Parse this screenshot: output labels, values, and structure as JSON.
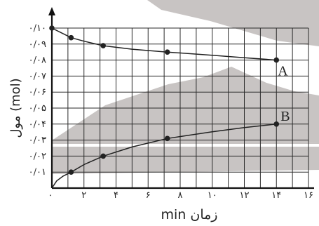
{
  "chart_data": {
    "type": "line",
    "xlabel": "min زمان",
    "ylabel": "مول (mol)",
    "xlim": [
      0,
      16
    ],
    "ylim": [
      0,
      0.1
    ],
    "grid": true,
    "x_ticks": [
      {
        "value": 0,
        "label": "۰"
      },
      {
        "value": 2,
        "label": "۲"
      },
      {
        "value": 4,
        "label": "۴"
      },
      {
        "value": 6,
        "label": "۶"
      },
      {
        "value": 8,
        "label": "۸"
      },
      {
        "value": 10,
        "label": "۱۰"
      },
      {
        "value": 12,
        "label": "۱۲"
      },
      {
        "value": 14,
        "label": "۱۴"
      },
      {
        "value": 16,
        "label": "۱۶"
      }
    ],
    "y_ticks": [
      {
        "value": 0.01,
        "label": "۰/۰۱"
      },
      {
        "value": 0.02,
        "label": "۰/۰۲"
      },
      {
        "value": 0.03,
        "label": "۰/۰۳"
      },
      {
        "value": 0.04,
        "label": "۰/۰۴"
      },
      {
        "value": 0.05,
        "label": "۰/۰۵"
      },
      {
        "value": 0.06,
        "label": "۰/۰۶"
      },
      {
        "value": 0.07,
        "label": "۰/۰۷"
      },
      {
        "value": 0.08,
        "label": "۰/۰۸"
      },
      {
        "value": 0.09,
        "label": "۰/۰۹"
      },
      {
        "value": 0.1,
        "label": "۰/۱۰"
      }
    ],
    "series": [
      {
        "name": "A",
        "points": [
          [
            0,
            0.1
          ],
          [
            1.2,
            0.094
          ],
          [
            3.2,
            0.089
          ],
          [
            7.2,
            0.085
          ],
          [
            14,
            0.08
          ]
        ]
      },
      {
        "name": "B",
        "points": [
          [
            1.2,
            0.01
          ],
          [
            3.2,
            0.02
          ],
          [
            7.2,
            0.031
          ],
          [
            14,
            0.04
          ]
        ]
      }
    ],
    "curves": {
      "A": [
        [
          0,
          0.1
        ],
        [
          0.5,
          0.0975
        ],
        [
          1.2,
          0.094
        ],
        [
          2,
          0.0918
        ],
        [
          3.2,
          0.089
        ],
        [
          5,
          0.0868
        ],
        [
          7.2,
          0.085
        ],
        [
          10,
          0.083
        ],
        [
          12,
          0.0815
        ],
        [
          14,
          0.08
        ]
      ],
      "B": [
        [
          0,
          0
        ],
        [
          0.3,
          0.0045
        ],
        [
          0.7,
          0.0075
        ],
        [
          1.2,
          0.01
        ],
        [
          2,
          0.0147
        ],
        [
          3.2,
          0.02
        ],
        [
          5,
          0.0257
        ],
        [
          7.2,
          0.031
        ],
        [
          10,
          0.0352
        ],
        [
          12,
          0.0378
        ],
        [
          14,
          0.04
        ]
      ]
    },
    "colors": {
      "background_band": "#c8c4c3",
      "line": "#222222",
      "grid": "#2a2a2a"
    }
  }
}
